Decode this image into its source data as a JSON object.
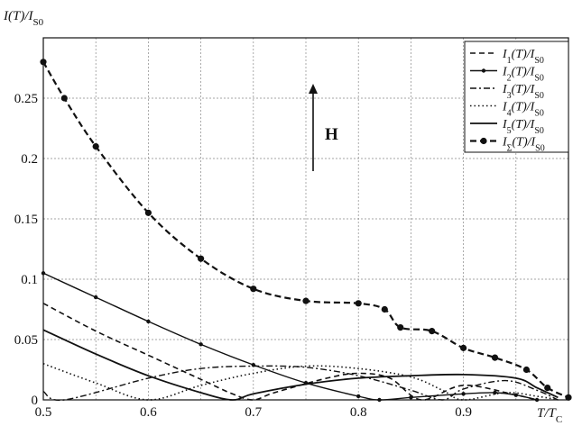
{
  "chart_data": {
    "type": "line",
    "title": "",
    "ylabel": "I(T)/I_S0",
    "xlabel": "T/T_C",
    "xlim": [
      0.5,
      1.0
    ],
    "ylim": [
      0,
      0.3
    ],
    "grid": true,
    "legend_position": "top-right",
    "x_ticks": [
      "0.5",
      "0.6",
      "0.7",
      "0.8",
      "0.9"
    ],
    "y_ticks": [
      "0",
      "0.05",
      "0.1",
      "0.15",
      "0.2",
      "0.25"
    ],
    "annotation": "H",
    "series": [
      {
        "name": "I1(T)/IS0",
        "style": "dashed",
        "points": [
          [
            0.5,
            0.08
          ],
          [
            0.55,
            0.057
          ],
          [
            0.6,
            0.037
          ],
          [
            0.65,
            0.017
          ],
          [
            0.68,
            0.005
          ],
          [
            0.7,
            0.0
          ],
          [
            0.72,
            0.006
          ],
          [
            0.77,
            0.018
          ],
          [
            0.8,
            0.022
          ],
          [
            0.83,
            0.018
          ],
          [
            0.86,
            0.0
          ],
          [
            0.9,
            0.012
          ],
          [
            0.95,
            0.004
          ],
          [
            0.97,
            0.0
          ]
        ]
      },
      {
        "name": "I2(T)/IS0",
        "style": "solid-dot",
        "points": [
          [
            0.5,
            0.105
          ],
          [
            0.55,
            0.085
          ],
          [
            0.6,
            0.065
          ],
          [
            0.65,
            0.046
          ],
          [
            0.7,
            0.029
          ],
          [
            0.75,
            0.014
          ],
          [
            0.8,
            0.003
          ],
          [
            0.82,
            0.0
          ],
          [
            0.85,
            0.002
          ],
          [
            0.9,
            0.005
          ],
          [
            0.93,
            0.006
          ],
          [
            0.95,
            0.004
          ],
          [
            0.97,
            0.0
          ]
        ]
      },
      {
        "name": "I3(T)/IS0",
        "style": "dashdot",
        "points": [
          [
            0.5,
            0.007
          ],
          [
            0.52,
            0.0
          ],
          [
            0.6,
            0.018
          ],
          [
            0.65,
            0.026
          ],
          [
            0.7,
            0.028
          ],
          [
            0.75,
            0.027
          ],
          [
            0.8,
            0.02
          ],
          [
            0.85,
            0.008
          ],
          [
            0.88,
            0.0
          ],
          [
            0.9,
            0.009
          ],
          [
            0.94,
            0.016
          ],
          [
            0.97,
            0.008
          ],
          [
            0.99,
            0.0
          ]
        ]
      },
      {
        "name": "I4(T)/IS0",
        "style": "dotted",
        "points": [
          [
            0.5,
            0.03
          ],
          [
            0.55,
            0.014
          ],
          [
            0.6,
            0.0
          ],
          [
            0.65,
            0.012
          ],
          [
            0.7,
            0.022
          ],
          [
            0.75,
            0.028
          ],
          [
            0.8,
            0.026
          ],
          [
            0.85,
            0.019
          ],
          [
            0.88,
            0.008
          ],
          [
            0.9,
            0.0
          ],
          [
            0.94,
            0.006
          ],
          [
            0.97,
            0.003
          ],
          [
            0.99,
            0.0
          ]
        ]
      },
      {
        "name": "I5(T)/IS0",
        "style": "solid",
        "points": [
          [
            0.5,
            0.058
          ],
          [
            0.55,
            0.038
          ],
          [
            0.6,
            0.02
          ],
          [
            0.65,
            0.006
          ],
          [
            0.68,
            0.0
          ],
          [
            0.7,
            0.005
          ],
          [
            0.75,
            0.013
          ],
          [
            0.8,
            0.018
          ],
          [
            0.85,
            0.02
          ],
          [
            0.9,
            0.021
          ],
          [
            0.95,
            0.018
          ],
          [
            0.97,
            0.01
          ],
          [
            0.99,
            0.002
          ]
        ]
      },
      {
        "name": "IΣ(T)/IS0",
        "style": "dashed-dot-marker",
        "points": [
          [
            0.5,
            0.28
          ],
          [
            0.52,
            0.25
          ],
          [
            0.55,
            0.21
          ],
          [
            0.6,
            0.155
          ],
          [
            0.65,
            0.117
          ],
          [
            0.7,
            0.092
          ],
          [
            0.75,
            0.082
          ],
          [
            0.8,
            0.08
          ],
          [
            0.825,
            0.075
          ],
          [
            0.84,
            0.06
          ],
          [
            0.87,
            0.057
          ],
          [
            0.9,
            0.043
          ],
          [
            0.93,
            0.035
          ],
          [
            0.96,
            0.025
          ],
          [
            0.98,
            0.01
          ],
          [
            1.0,
            0.002
          ]
        ]
      }
    ]
  }
}
